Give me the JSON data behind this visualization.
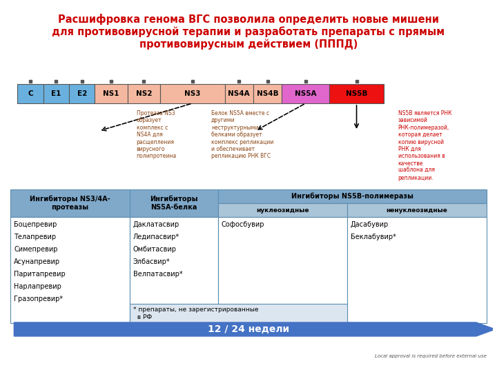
{
  "title_line1": "Расшифровка генома ВГС позволила определить новые мишени",
  "title_line2": "для противовирусной терапии и разработать препараты с прямым",
  "title_line3": "противовирусным действием (ПППД)",
  "title_color": "#cc0000",
  "bg_color": "#ffffff",
  "genome_labels": [
    "C",
    "E1",
    "E2",
    "NS1",
    "NS2",
    "NS3",
    "NS4A",
    "NS4B",
    "NS5A",
    "NS5B"
  ],
  "genome_colors": [
    "#6ab0de",
    "#6ab0de",
    "#6ab0de",
    "#f4b8a0",
    "#f4b8a0",
    "#f4b8a0",
    "#f4b8a0",
    "#f4b8a0",
    "#e066cc",
    "#ee1111"
  ],
  "table_header_bg": "#7fa8c9",
  "table_header_text": "#ffffff",
  "table_subheader_bg": "#aac4d8",
  "table_row_bg": "#ffffff",
  "table_border": "#5a8db0",
  "col1_header": "Ингибиторы NS3/4A-\nпротеазы",
  "col2_header": "Ингибиторы\nNS5A-белка",
  "col3_header": "Ингибиторы NS5B-полимеразы",
  "col3a_header": "нуклеозидные",
  "col3b_header": "ненуклеозидные",
  "col1_drugs": [
    "Боцепревир",
    "Телапревир",
    "Симепревир",
    "Асунапревир",
    "Паритапревир",
    "Нарлапревир",
    "Гразопревир*"
  ],
  "col2_drugs": [
    "Даклатасвир",
    "Ледипасвир*",
    "Омбитасвир",
    "Элбасвир*",
    "Велпатасвир*"
  ],
  "col3a_drugs": [
    "Софосбувир"
  ],
  "col3b_drugs": [
    "Дасабувир",
    "Беклабувир*"
  ],
  "footnote": "* препараты, не зарегистрированные\n  в РФ",
  "arrow_text": "12 / 24 недели",
  "arrow_color": "#4472c4",
  "footer_text": "Local approval is required before external use",
  "ns3_text": "Протеаза NS3\nобразует\nкомплекс с\nNS4A для\nрасщепления\nвирусного\nполипротеина",
  "ns5a_text": "Белок NS5A вместе с\nдругими\nнеструктурными\nбелками образует\nкомплекс репликации\nи обеспечивает\nрепликацию РНК ВГС",
  "ns5b_text": "NS5B является РНК\nзависимой\nРНК-полимеразой,\nкоторая делает\nкопию вирусной\nРНК для\nиспользования в\nкачестве\nшаблона для\nрепликации.",
  "ns5b_text_color": "#cc0000",
  "annotation_color": "#8B4513"
}
